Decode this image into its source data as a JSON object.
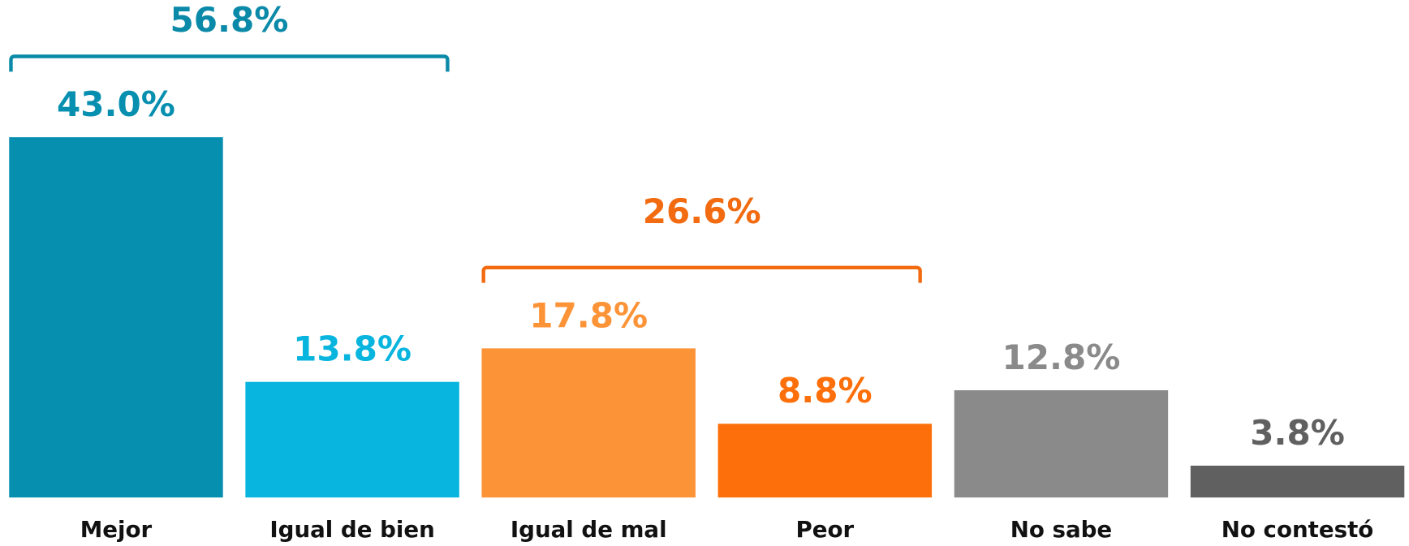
{
  "chart_data": {
    "type": "bar",
    "categories": [
      "Mejor",
      "Igual de bien",
      "Igual de mal",
      "Peor",
      "No sabe",
      "No contestó"
    ],
    "values": [
      43.0,
      13.8,
      17.8,
      8.8,
      12.8,
      3.8
    ],
    "value_labels": [
      "43.0%",
      "13.8%",
      "17.8%",
      "8.8%",
      "12.8%",
      "3.8%"
    ],
    "colors": [
      "#078fb0",
      "#08b5de",
      "#fc9337",
      "#fd6f0a",
      "#8a8a8a",
      "#606060"
    ],
    "annotations": [
      {
        "value": 56.8,
        "label": "56.8%",
        "color": "#0a8aa8",
        "span": [
          "Mejor",
          "Igual de bien"
        ]
      },
      {
        "value": 26.6,
        "label": "26.6%",
        "color": "#f26b10",
        "span": [
          "Igual de mal",
          "Peor"
        ]
      }
    ]
  }
}
